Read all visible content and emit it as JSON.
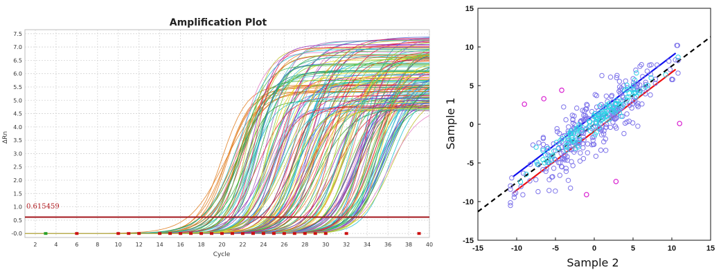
{
  "chart_data": [
    {
      "type": "line",
      "title": "Amplification Plot",
      "xlabel": "Cycle",
      "ylabel": "ΔRn",
      "xlim": [
        1,
        40
      ],
      "ylim": [
        -0.15,
        7.65
      ],
      "x_ticks": [
        2,
        4,
        6,
        8,
        10,
        12,
        14,
        16,
        18,
        20,
        22,
        24,
        26,
        28,
        30,
        32,
        34,
        36,
        38,
        40
      ],
      "y_ticks": [
        "-0.0",
        "0.5",
        "1.0",
        "1.5",
        "2.0",
        "2.5",
        "3.0",
        "3.5",
        "4.0",
        "4.5",
        "5.0",
        "5.5",
        "6.0",
        "6.5",
        "7.0",
        "7.5"
      ],
      "grid": true,
      "threshold": {
        "label": "0.615459",
        "value": 0.615459,
        "color": "#a3161b"
      },
      "series_groups": [
        {
          "midpoint_range": [
            19.5,
            21.5
          ],
          "plateau_range": [
            5.3,
            5.6
          ],
          "count": 10,
          "color": "#e07b1c"
        },
        {
          "midpoint_range": [
            21.5,
            36.5
          ],
          "plateau_range": [
            4.6,
            7.4
          ],
          "count": 150,
          "color": "mixed"
        }
      ],
      "baseline_markers_x": [
        3,
        6,
        10,
        11,
        12,
        14,
        15,
        16,
        17,
        18,
        19,
        20,
        21,
        22,
        23,
        24,
        25,
        26,
        27,
        28,
        29,
        30,
        32,
        39
      ],
      "marker_colors": {
        "red": "#cc1111",
        "green": "#2aa02a"
      }
    },
    {
      "type": "scatter",
      "xlabel": "Sample 2",
      "ylabel": "Sample 1",
      "xlim": [
        -15,
        15
      ],
      "ylim": [
        -15,
        15
      ],
      "x_ticks": [
        "-15",
        "-10",
        "-5",
        "0",
        "5",
        "10",
        "15"
      ],
      "y_ticks": [
        "15",
        "10",
        "5",
        "0",
        "-5",
        "-10",
        "-15"
      ],
      "grid": false,
      "series": [
        {
          "color": "#7d73ea",
          "count": 300
        },
        {
          "color": "#2fd3e6",
          "count": 130
        },
        {
          "color": "#d81ed0",
          "points": [
            [
              -9,
              2.6
            ],
            [
              -6.5,
              3.3
            ],
            [
              -4.2,
              4.4
            ],
            [
              11,
              0.1
            ],
            [
              2.8,
              -7.4
            ],
            [
              -1,
              -9.1
            ]
          ]
        }
      ],
      "lines": [
        {
          "style": "dashed",
          "color": "#000000",
          "from": [
            -15,
            -11.3
          ],
          "to": [
            15,
            11.3
          ]
        },
        {
          "style": "solid",
          "color": "#1010ee",
          "from": [
            -10.5,
            -6.8
          ],
          "to": [
            10.5,
            9.2
          ]
        },
        {
          "style": "solid",
          "color": "#ee1010",
          "from": [
            -10.5,
            -8.9
          ],
          "to": [
            10.5,
            7.1
          ]
        }
      ]
    }
  ]
}
